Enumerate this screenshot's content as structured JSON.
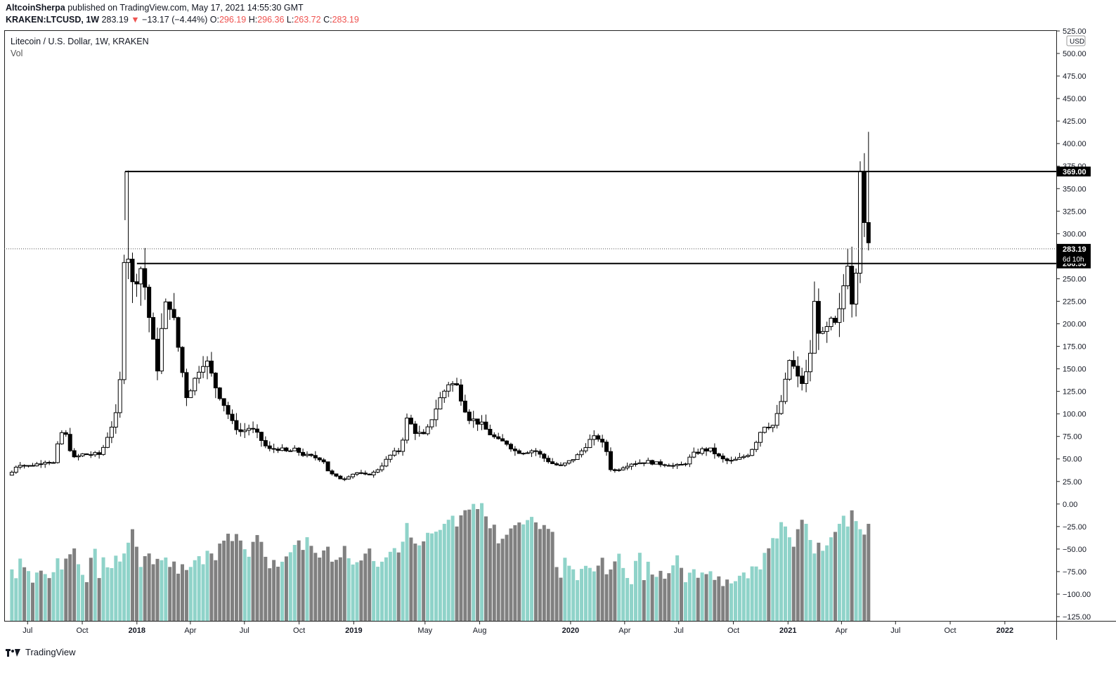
{
  "header": {
    "author": "AltcoinSherpa",
    "published_text": "published on TradingView.com, May 17, 2021 14:55:30 GMT",
    "symbol": "KRAKEN:LTCUSD, 1W",
    "price": "283.19",
    "change_arrow": "▼",
    "change": "−13.17 (−4.44%)",
    "o_label": "O:",
    "o_val": "296.19",
    "h_label": "H:",
    "h_val": "296.36",
    "l_label": "L:",
    "l_val": "263.72",
    "c_label": "C:",
    "c_val": "283.19"
  },
  "legend": {
    "title": "Litecoin / U.S. Dollar, 1W, KRAKEN",
    "vol": "Vol"
  },
  "branding": {
    "logo_text": "TradingView"
  },
  "colors": {
    "up_body": "#ffffff",
    "down_body": "#000000",
    "wick": "#000000",
    "vol_up": "#8fd3c9",
    "vol_down": "#808080",
    "hline": "#000000"
  },
  "chart_data": {
    "type": "candlestick",
    "y_axis": {
      "unit_label": "USD",
      "min": -125,
      "max": 525,
      "step": 25,
      "ticks": [
        "525.00",
        "500.00",
        "475.00",
        "450.00",
        "425.00",
        "400.00",
        "375.00",
        "350.00",
        "325.00",
        "300.00",
        "275.00",
        "250.00",
        "225.00",
        "200.00",
        "175.00",
        "150.00",
        "125.00",
        "100.00",
        "75.00",
        "50.00",
        "25.00",
        "0.00",
        "−25.00",
        "−50.00",
        "−75.00",
        "−100.00",
        "−125.00"
      ]
    },
    "x_axis": {
      "labels": [
        {
          "label": "Jul",
          "date": "2017-07-01"
        },
        {
          "label": "Oct",
          "date": "2017-10-01"
        },
        {
          "label": "2018",
          "date": "2018-01-01",
          "bold": true
        },
        {
          "label": "Apr",
          "date": "2018-04-01"
        },
        {
          "label": "Jul",
          "date": "2018-07-01"
        },
        {
          "label": "Oct",
          "date": "2018-10-01"
        },
        {
          "label": "2019",
          "date": "2019-01-01",
          "bold": true
        },
        {
          "label": "May",
          "date": "2019-05-01"
        },
        {
          "label": "Aug",
          "date": "2019-08-01"
        },
        {
          "label": "2020",
          "date": "2020-01-01",
          "bold": true
        },
        {
          "label": "Apr",
          "date": "2020-04-01"
        },
        {
          "label": "Jul",
          "date": "2020-07-01"
        },
        {
          "label": "Oct",
          "date": "2020-10-01"
        },
        {
          "label": "2021",
          "date": "2021-01-01",
          "bold": true
        },
        {
          "label": "Apr",
          "date": "2021-04-01"
        },
        {
          "label": "Jul",
          "date": "2021-07-01"
        },
        {
          "label": "Oct",
          "date": "2021-10-01"
        },
        {
          "label": "2022",
          "date": "2022-01-01",
          "bold": true
        }
      ]
    },
    "price_points": [
      [
        "2017-06-01",
        32
      ],
      [
        "2017-06-15",
        45
      ],
      [
        "2017-07-01",
        42
      ],
      [
        "2017-07-15",
        44
      ],
      [
        "2017-08-01",
        48
      ],
      [
        "2017-08-15",
        45
      ],
      [
        "2017-08-25",
        80
      ],
      [
        "2017-09-05",
        75
      ],
      [
        "2017-09-15",
        50
      ],
      [
        "2017-10-01",
        55
      ],
      [
        "2017-10-15",
        55
      ],
      [
        "2017-11-01",
        55
      ],
      [
        "2017-11-15",
        80
      ],
      [
        "2017-11-28",
        100
      ],
      [
        "2017-12-05",
        145
      ],
      [
        "2017-12-12",
        315
      ],
      [
        "2017-12-19",
        268
      ],
      [
        "2017-12-26",
        235
      ],
      [
        "2018-01-05",
        270
      ],
      [
        "2018-01-15",
        240
      ],
      [
        "2018-01-25",
        190
      ],
      [
        "2018-02-05",
        150
      ],
      [
        "2018-02-15",
        215
      ],
      [
        "2018-02-25",
        225
      ],
      [
        "2018-03-05",
        200
      ],
      [
        "2018-03-15",
        160
      ],
      [
        "2018-03-25",
        120
      ],
      [
        "2018-04-10",
        140
      ],
      [
        "2018-04-20",
        160
      ],
      [
        "2018-05-01",
        155
      ],
      [
        "2018-05-10",
        135
      ],
      [
        "2018-05-25",
        115
      ],
      [
        "2018-06-10",
        90
      ],
      [
        "2018-06-25",
        80
      ],
      [
        "2018-07-10",
        85
      ],
      [
        "2018-07-25",
        75
      ],
      [
        "2018-08-10",
        60
      ],
      [
        "2018-08-25",
        62
      ],
      [
        "2018-09-10",
        58
      ],
      [
        "2018-09-25",
        60
      ],
      [
        "2018-10-10",
        54
      ],
      [
        "2018-10-25",
        52
      ],
      [
        "2018-11-10",
        50
      ],
      [
        "2018-11-20",
        35
      ],
      [
        "2018-12-05",
        29
      ],
      [
        "2018-12-15",
        28
      ],
      [
        "2018-12-25",
        32
      ],
      [
        "2019-01-05",
        35
      ],
      [
        "2019-01-20",
        32
      ],
      [
        "2019-02-05",
        35
      ],
      [
        "2019-02-20",
        45
      ],
      [
        "2019-03-05",
        55
      ],
      [
        "2019-03-20",
        60
      ],
      [
        "2019-04-01",
        95
      ],
      [
        "2019-04-15",
        80
      ],
      [
        "2019-05-01",
        75
      ],
      [
        "2019-05-15",
        100
      ],
      [
        "2019-05-25",
        115
      ],
      [
        "2019-06-10",
        135
      ],
      [
        "2019-06-25",
        130
      ],
      [
        "2019-07-05",
        110
      ],
      [
        "2019-07-15",
        95
      ],
      [
        "2019-08-01",
        90
      ],
      [
        "2019-08-15",
        80
      ],
      [
        "2019-09-01",
        70
      ],
      [
        "2019-09-15",
        68
      ],
      [
        "2019-10-01",
        58
      ],
      [
        "2019-10-15",
        58
      ],
      [
        "2019-11-01",
        60
      ],
      [
        "2019-11-15",
        52
      ],
      [
        "2019-12-01",
        45
      ],
      [
        "2019-12-15",
        42
      ],
      [
        "2020-01-01",
        48
      ],
      [
        "2020-01-15",
        55
      ],
      [
        "2020-02-01",
        70
      ],
      [
        "2020-02-15",
        75
      ],
      [
        "2020-03-01",
        60
      ],
      [
        "2020-03-10",
        35
      ],
      [
        "2020-03-25",
        40
      ],
      [
        "2020-04-10",
        45
      ],
      [
        "2020-04-25",
        46
      ],
      [
        "2020-05-10",
        47
      ],
      [
        "2020-05-25",
        45
      ],
      [
        "2020-06-10",
        44
      ],
      [
        "2020-06-25",
        42
      ],
      [
        "2020-07-10",
        44
      ],
      [
        "2020-07-25",
        55
      ],
      [
        "2020-08-10",
        60
      ],
      [
        "2020-08-25",
        60
      ],
      [
        "2020-09-10",
        50
      ],
      [
        "2020-09-25",
        47
      ],
      [
        "2020-10-10",
        50
      ],
      [
        "2020-10-25",
        55
      ],
      [
        "2020-11-05",
        65
      ],
      [
        "2020-11-15",
        80
      ],
      [
        "2020-11-25",
        90
      ],
      [
        "2020-12-05",
        85
      ],
      [
        "2020-12-15",
        100
      ],
      [
        "2020-12-25",
        125
      ],
      [
        "2021-01-05",
        165
      ],
      [
        "2021-01-15",
        140
      ],
      [
        "2021-01-25",
        135
      ],
      [
        "2021-02-05",
        150
      ],
      [
        "2021-02-15",
        225
      ],
      [
        "2021-02-25",
        180
      ],
      [
        "2021-03-05",
        190
      ],
      [
        "2021-03-15",
        200
      ],
      [
        "2021-03-25",
        195
      ],
      [
        "2021-04-05",
        245
      ],
      [
        "2021-04-12",
        275
      ],
      [
        "2021-04-19",
        225
      ],
      [
        "2021-04-26",
        270
      ],
      [
        "2021-05-03",
        389
      ],
      [
        "2021-05-10",
        296
      ],
      [
        "2021-05-17",
        283
      ]
    ],
    "candle_wick_extremes": [
      {
        "label": "2017 high",
        "date": "2017-12-12",
        "value": 370
      },
      {
        "label": "2021 high",
        "date": "2021-05-10",
        "value": 413
      }
    ],
    "horizontal_levels": [
      {
        "value": 369.0,
        "label": "369.00",
        "from_date": "2017-12-12"
      },
      {
        "value": 266.96,
        "label": "266.96",
        "from_date": "2018-01-01"
      }
    ],
    "last_price": {
      "value": 283.19,
      "label": "283.19",
      "countdown": "6d 10h"
    },
    "volume_bars_relative": [
      0.56,
      0.45,
      0.65,
      0.56,
      0.52,
      0.4,
      0.5,
      0.52,
      0.48,
      0.44,
      0.5,
      0.58,
      0.45,
      0.55,
      0.64,
      0.72,
      0.56,
      0.45,
      0.38,
      0.62,
      0.7,
      0.42,
      0.6,
      0.48,
      0.45,
      0.52,
      0.44,
      0.5,
      0.58,
      0.68,
      0.55,
      0.4,
      0.48,
      0.5,
      0.42,
      0.46,
      0.45,
      0.47,
      0.4,
      0.44,
      0.35,
      0.42,
      0.38,
      0.4,
      0.45,
      0.48,
      0.42,
      0.52,
      0.5,
      0.45,
      0.58,
      0.62,
      0.7,
      0.66,
      0.75,
      0.7,
      0.62,
      0.55,
      0.68,
      0.75,
      0.72,
      0.6,
      0.5,
      0.58,
      0.52,
      0.56,
      0.62,
      0.66,
      0.72,
      0.78,
      0.7,
      0.82,
      0.74,
      0.68,
      0.64,
      0.72,
      0.8,
      0.65,
      0.68,
      0.72,
      0.85,
      0.7,
      0.62,
      0.64,
      0.66,
      0.74,
      0.8,
      0.65,
      0.58,
      0.62,
      0.64,
      0.68,
      0.7,
      0.66,
      0.72,
      0.8,
      0.7,
      0.68,
      0.66,
      0.7,
      0.75,
      0.72,
      0.7,
      0.68,
      0.72,
      0.75,
      0.78,
      0.7,
      0.8,
      0.88,
      0.92,
      0.96,
      0.94,
      0.98,
      0.9,
      0.82,
      0.86,
      0.7,
      0.75,
      0.8,
      0.88,
      0.92,
      0.96,
      0.94,
      0.98,
      1.0,
      0.95,
      0.9,
      0.96,
      0.94,
      0.92
    ]
  }
}
